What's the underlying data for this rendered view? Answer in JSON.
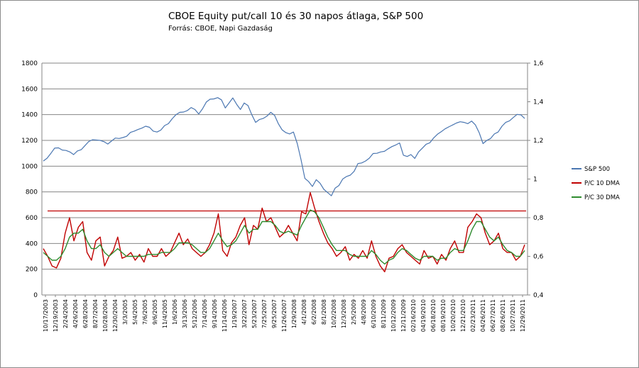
{
  "chart_data": {
    "type": "line",
    "title": "CBOE Equity put/call 10 és 30 napos átlaga, S&P 500",
    "subtitle": "Forrás: CBOE, Napi Gazdaság",
    "ylim_left": [
      0,
      1800
    ],
    "yticks_left": [
      "0",
      "200",
      "400",
      "600",
      "800",
      "1000",
      "1200",
      "1400",
      "1600",
      "1800"
    ],
    "ylim_right": [
      0.4,
      1.6
    ],
    "yticks_right": [
      "0,4",
      "0,6",
      "0,8",
      "1",
      "1,2",
      "1,4",
      "1,6"
    ],
    "grid": true,
    "legend_position": "right",
    "x_tick_labels": [
      "10/17/2003",
      "12/19/2003",
      "2/24/2004",
      "4/26/2004",
      "6/28/2004",
      "8/27/2004",
      "10/28/2004",
      "12/30/2004",
      "3/3/2005",
      "5/4/2005",
      "7/6/2005",
      "9/6/2005",
      "11/4/2005",
      "1/6/2006",
      "3/13/2006",
      "5/12/2006",
      "7/14/2006",
      "9/14/2006",
      "11/14/2006",
      "1/19/2007",
      "3/22/2007",
      "5/23/2007",
      "7/25/2007",
      "9/25/2007",
      "11/26/2007",
      "1/29/2008",
      "4/1/2008",
      "6/2/2008",
      "8/1/2008",
      "10/2/2008",
      "12/3/2008",
      "2/5/2009",
      "4/8/2009",
      "6/10/2009",
      "8/11/2009",
      "10/12/2009",
      "12/11/2009",
      "02/16/2010",
      "04/19/2010",
      "06/18/2010",
      "08/19/2010",
      "10/20/2010",
      "12/21/2010",
      "02/23/2011",
      "04/26/2011",
      "06/27/2011",
      "08/26/2011",
      "10/27/2011",
      "12/29/2011"
    ],
    "series": [
      {
        "name": "S&P 500",
        "axis": "left",
        "color": "#4a76b1",
        "values": [
          1040,
          1062,
          1100,
          1140,
          1142,
          1125,
          1122,
          1110,
          1090,
          1118,
          1128,
          1160,
          1192,
          1205,
          1203,
          1200,
          1190,
          1172,
          1195,
          1218,
          1215,
          1222,
          1232,
          1262,
          1272,
          1285,
          1295,
          1310,
          1302,
          1272,
          1265,
          1280,
          1315,
          1330,
          1368,
          1400,
          1418,
          1420,
          1432,
          1455,
          1440,
          1405,
          1445,
          1498,
          1520,
          1522,
          1532,
          1515,
          1452,
          1490,
          1530,
          1480,
          1440,
          1490,
          1470,
          1400,
          1340,
          1362,
          1370,
          1388,
          1418,
          1395,
          1330,
          1282,
          1260,
          1250,
          1265,
          1175,
          1050,
          905,
          880,
          842,
          895,
          868,
          820,
          795,
          770,
          830,
          850,
          900,
          920,
          930,
          960,
          1020,
          1025,
          1040,
          1062,
          1098,
          1100,
          1110,
          1115,
          1135,
          1152,
          1165,
          1180,
          1085,
          1075,
          1090,
          1060,
          1110,
          1140,
          1170,
          1182,
          1220,
          1248,
          1268,
          1290,
          1305,
          1320,
          1335,
          1345,
          1340,
          1330,
          1350,
          1320,
          1260,
          1175,
          1200,
          1215,
          1250,
          1265,
          1310,
          1340,
          1352,
          1378,
          1402,
          1398,
          1370
        ]
      },
      {
        "name": "P/C 10 DMA",
        "axis": "right",
        "color": "#c00000",
        "values": [
          0.64,
          0.6,
          0.55,
          0.54,
          0.59,
          0.72,
          0.8,
          0.68,
          0.75,
          0.78,
          0.62,
          0.58,
          0.68,
          0.7,
          0.55,
          0.6,
          0.63,
          0.7,
          0.59,
          0.6,
          0.62,
          0.58,
          0.61,
          0.57,
          0.64,
          0.6,
          0.6,
          0.64,
          0.6,
          0.62,
          0.67,
          0.72,
          0.66,
          0.69,
          0.64,
          0.62,
          0.6,
          0.62,
          0.66,
          0.72,
          0.82,
          0.63,
          0.6,
          0.67,
          0.7,
          0.76,
          0.8,
          0.66,
          0.76,
          0.74,
          0.85,
          0.78,
          0.8,
          0.75,
          0.7,
          0.72,
          0.76,
          0.72,
          0.68,
          0.83,
          0.82,
          0.93,
          0.85,
          0.78,
          0.72,
          0.67,
          0.64,
          0.6,
          0.62,
          0.65,
          0.58,
          0.61,
          0.59,
          0.63,
          0.59,
          0.68,
          0.6,
          0.55,
          0.52,
          0.59,
          0.6,
          0.64,
          0.66,
          0.62,
          0.6,
          0.58,
          0.56,
          0.63,
          0.59,
          0.6,
          0.56,
          0.61,
          0.58,
          0.64,
          0.68,
          0.62,
          0.62,
          0.75,
          0.78,
          0.82,
          0.8,
          0.72,
          0.66,
          0.68,
          0.72,
          0.64,
          0.62,
          0.62,
          0.58,
          0.6,
          0.66
        ],
        "note": "",
        "threshold": 0.835
      },
      {
        "name": "P/C 30 DMA",
        "axis": "right",
        "color": "#2e8b2e",
        "values": [
          0.62,
          0.6,
          0.58,
          0.58,
          0.6,
          0.64,
          0.7,
          0.72,
          0.72,
          0.74,
          0.68,
          0.64,
          0.64,
          0.66,
          0.62,
          0.6,
          0.62,
          0.64,
          0.62,
          0.6,
          0.6,
          0.6,
          0.6,
          0.6,
          0.61,
          0.61,
          0.61,
          0.62,
          0.62,
          0.62,
          0.64,
          0.67,
          0.67,
          0.67,
          0.66,
          0.64,
          0.62,
          0.62,
          0.64,
          0.68,
          0.72,
          0.68,
          0.65,
          0.66,
          0.68,
          0.72,
          0.76,
          0.72,
          0.74,
          0.74,
          0.78,
          0.78,
          0.78,
          0.76,
          0.73,
          0.72,
          0.73,
          0.72,
          0.71,
          0.76,
          0.8,
          0.84,
          0.83,
          0.8,
          0.75,
          0.7,
          0.66,
          0.63,
          0.63,
          0.63,
          0.61,
          0.6,
          0.6,
          0.6,
          0.6,
          0.63,
          0.61,
          0.58,
          0.56,
          0.58,
          0.59,
          0.62,
          0.64,
          0.63,
          0.61,
          0.59,
          0.58,
          0.6,
          0.6,
          0.6,
          0.58,
          0.59,
          0.59,
          0.62,
          0.64,
          0.63,
          0.63,
          0.68,
          0.74,
          0.78,
          0.78,
          0.74,
          0.7,
          0.68,
          0.7,
          0.66,
          0.63,
          0.62,
          0.6,
          0.6,
          0.63
        ]
      }
    ]
  }
}
